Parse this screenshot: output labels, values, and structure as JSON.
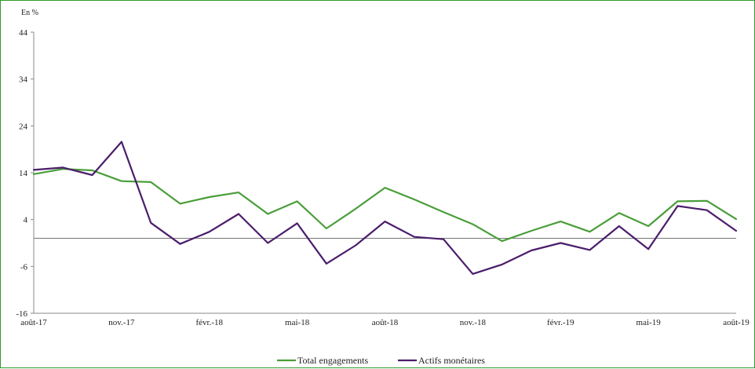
{
  "chart_data": {
    "type": "line",
    "unit_label": "En %",
    "x": [
      "août-17",
      "sept.-17",
      "oct.-17",
      "nov.-17",
      "déc.-17",
      "janv.-18",
      "févr.-18",
      "mars-18",
      "avr.-18",
      "mai-18",
      "juin-18",
      "juil.-18",
      "août-18",
      "sept.-18",
      "oct.-18",
      "nov.-18",
      "déc.-18",
      "janv.-19",
      "févr.-19",
      "mars-19",
      "avr.-19",
      "mai-19",
      "juin-19",
      "juil.-19",
      "août-19"
    ],
    "x_tick_labels": [
      "août-17",
      "nov.-17",
      "févr.-18",
      "mai-18",
      "août-18",
      "nov.-18",
      "févr.-19",
      "mai-19",
      "août-19"
    ],
    "x_tick_indices": [
      0,
      3,
      6,
      9,
      12,
      15,
      18,
      21,
      24
    ],
    "y_ticks": [
      44,
      34,
      24,
      14,
      4,
      -6,
      -16
    ],
    "ylim": [
      -16,
      44
    ],
    "grid": false,
    "zero_line": true,
    "legend_position": "bottom",
    "series": [
      {
        "name": "Total engagements",
        "color": "#4a9e3a",
        "values": [
          13.7,
          14.8,
          14.5,
          12.2,
          12.0,
          7.4,
          8.8,
          9.8,
          5.2,
          7.9,
          2.1,
          6.3,
          10.8,
          8.3,
          5.6,
          3.0,
          -0.6,
          1.6,
          3.6,
          1.4,
          5.4,
          2.6,
          7.9,
          8.0,
          4.1
        ]
      },
      {
        "name": "Actifs monétaires",
        "color": "#4b1d6b",
        "values": [
          14.6,
          15.1,
          13.5,
          20.6,
          3.3,
          -1.2,
          1.4,
          5.2,
          -1.0,
          3.2,
          -5.4,
          -1.5,
          3.6,
          0.3,
          -0.2,
          -7.6,
          -5.6,
          -2.6,
          -1.0,
          -2.5,
          2.6,
          -2.3,
          6.9,
          6.0,
          1.6
        ]
      }
    ]
  }
}
